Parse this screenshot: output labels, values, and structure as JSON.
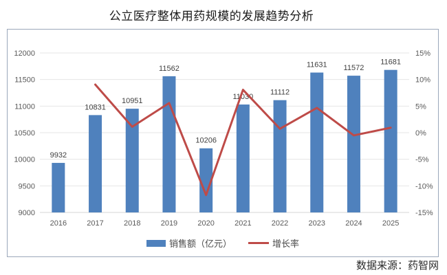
{
  "title": "公立医疗整体用药规模的发展趋势分析",
  "footer": {
    "source_label": "数据来源：药智网"
  },
  "colors": {
    "bar_blue": "#4f81bd",
    "line_red": "#be4b48",
    "frame_border": "#9aa7ba",
    "gridline": "#e4e4e4",
    "baseline": "#d6d6d6",
    "tick_text": "#595959",
    "label_text": "#404040"
  },
  "chart_data": {
    "type": "bar+line",
    "title": "公立医疗整体用药规模的发展趋势分析",
    "categories": [
      "2016",
      "2017",
      "2018",
      "2019",
      "2020",
      "2021",
      "2022",
      "2023",
      "2024",
      "2025"
    ],
    "series": [
      {
        "name": "销售额（亿元）",
        "type": "bar",
        "axis": "left",
        "color": "#4f81bd",
        "values": [
          9932,
          10831,
          10951,
          11562,
          10206,
          11030,
          11112,
          11631,
          11572,
          11681
        ],
        "data_labels": true
      },
      {
        "name": "增长率",
        "type": "line",
        "axis": "right",
        "color": "#be4b48",
        "unit": "%",
        "values": [
          null,
          9.05,
          1.11,
          5.58,
          -11.73,
          8.07,
          0.74,
          4.67,
          -0.51,
          0.94
        ],
        "data_labels": false
      }
    ],
    "left_axis": {
      "min": 9000,
      "max": 12000,
      "step": 500,
      "tick_values": [
        9000,
        9500,
        10000,
        10500,
        11000,
        11500,
        12000
      ]
    },
    "right_axis": {
      "min": -15,
      "max": 15,
      "step": 5,
      "tick_values": [
        -15,
        -10,
        -5,
        0,
        5,
        10,
        15
      ],
      "suffix": "%"
    },
    "grid": true,
    "legend_position": "bottom-inside",
    "xlabel": "",
    "ylabel_left": "",
    "ylabel_right": ""
  }
}
